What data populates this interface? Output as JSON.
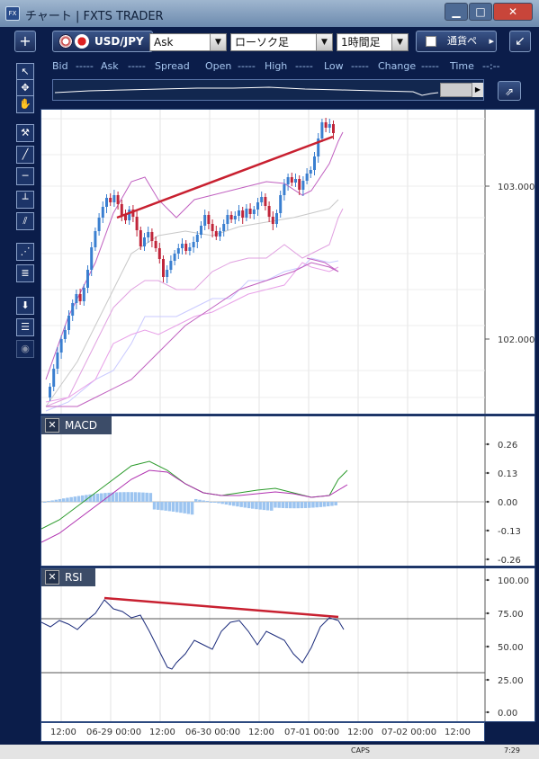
{
  "window": {
    "title": "チャート | FXTS TRADER",
    "controls": {
      "min": "▁",
      "max": "□",
      "close": "✕"
    }
  },
  "toolbar": {
    "add_label": "+",
    "symbol": "USD/JPY",
    "price_type": "Ask",
    "chart_type": "ローソク足",
    "timeframe": "1時間足",
    "currency_tab": "通貨ペ",
    "more_arrow": "▸",
    "corner_label": "↙"
  },
  "info": {
    "bid_label": "Bid",
    "bid_value": "-----",
    "ask_label": "Ask",
    "ask_value": "-----",
    "spread_label": "Spread",
    "open_label": "Open",
    "open_value": "-----",
    "high_label": "High",
    "high_value": "-----",
    "low_label": "Low",
    "low_value": "-----",
    "change_label": "Change",
    "change_value": "-----",
    "time_label": "Time",
    "time_value": "--:--"
  },
  "price_axis": {
    "labels": [
      "103.000",
      "102.000"
    ]
  },
  "macd": {
    "title": "MACD",
    "close": "✕",
    "axis_labels": [
      "0.26",
      "0.13",
      "0.00",
      "-0.13",
      "-0.26"
    ]
  },
  "rsi": {
    "title": "RSI",
    "close": "✕",
    "axis_labels": [
      "100.00",
      "75.00",
      "50.00",
      "25.00",
      "0.00"
    ]
  },
  "time_axis": {
    "labels": [
      "12:00",
      "06-29 00:00",
      "12:00",
      "06-30 00:00",
      "12:00",
      "07-01 00:00",
      "12:00",
      "07-02 00:00",
      "12:00"
    ]
  },
  "taskbar": {
    "caps": "CAPS",
    "clock": "7:29"
  },
  "colors": {
    "bull": "#3a7fd0",
    "bear": "#c0253a",
    "trend": "#c82030",
    "macd_line": "#2a9a2a",
    "signal_line": "#b030b0",
    "histogram": "#9cc4f0",
    "rsi_line": "#1a2a7a"
  }
}
